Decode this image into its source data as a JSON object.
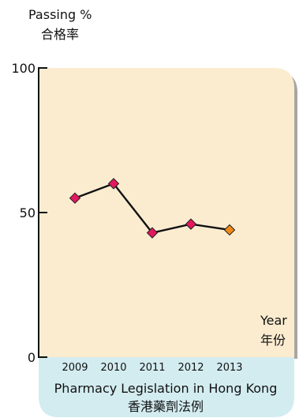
{
  "chart_data": {
    "type": "line",
    "y_title_en": "Passing %",
    "y_title_zh": "合格率",
    "x_title_en": "Year",
    "x_title_zh": "年份",
    "caption_en": "Pharmacy Legislation in Hong Kong",
    "caption_zh": "香港藥劑法例",
    "ylim": [
      0,
      100
    ],
    "y_ticks": [
      {
        "value": 0,
        "label": "0"
      },
      {
        "value": 50,
        "label": "50"
      },
      {
        "value": 100,
        "label": "100"
      }
    ],
    "categories": [
      "2009",
      "2010",
      "2011",
      "2012",
      "2013"
    ],
    "values": [
      55,
      60,
      43,
      46,
      44
    ],
    "grid": false,
    "colors": {
      "plot_background": "#fbecd0",
      "caption_background": "#d3ecf0",
      "line": "#111111",
      "marker": "#e3185f",
      "marker_highlight": "#f08a16",
      "shadow": "#a8a6a1"
    }
  }
}
